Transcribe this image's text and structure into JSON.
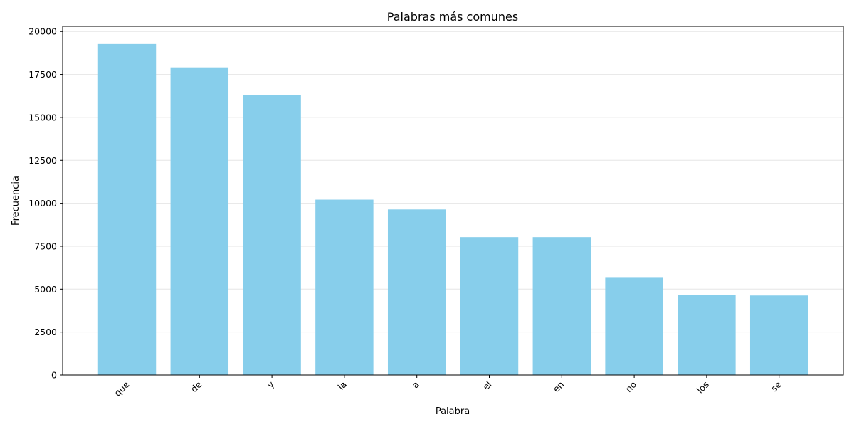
{
  "chart_data": {
    "type": "bar",
    "title": "Palabras más comunes",
    "xlabel": "Palabra",
    "ylabel": "Frecuencia",
    "categories": [
      "que",
      "de",
      "y",
      "la",
      "a",
      "el",
      "en",
      "no",
      "los",
      "se"
    ],
    "values": [
      19270,
      17910,
      16290,
      10210,
      9640,
      8030,
      8030,
      5700,
      4680,
      4630
    ],
    "ylim": [
      0,
      20300
    ],
    "yticks": [
      0,
      2500,
      5000,
      7500,
      10000,
      12500,
      15000,
      17500,
      20000
    ],
    "grid": "y",
    "bar_color": "#87ceeb",
    "x_tick_rotation": 45
  }
}
